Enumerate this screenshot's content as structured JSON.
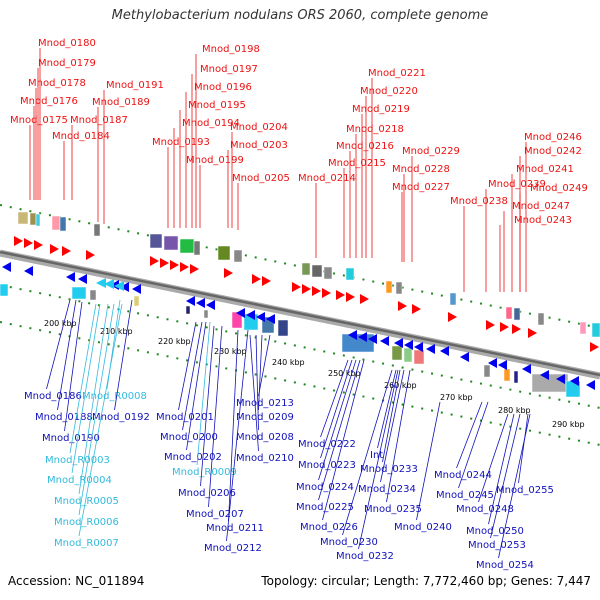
{
  "title": "Methylobacterium nodulans ORS 2060, complete genome",
  "footer": {
    "accession": "Accession: NC_011894",
    "topology": "Topology: circular; Length: 7,772,460 bp; Genes: 7,447"
  },
  "colors": {
    "forward_label": "#ee1111",
    "reverse_label": "#1111bb",
    "rna_label": "#33bbdd",
    "forward_gene": "#ff0000",
    "reverse_gene": "#0000ee",
    "rna_gene": "#22ccee",
    "backbone": "#888888",
    "tick": "#228822"
  },
  "ticks": [
    "200 kbp",
    "210 kbp",
    "220 kbp",
    "230 kbp",
    "240 kbp",
    "250 kbp",
    "260 kbp",
    "270 kbp",
    "280 kbp",
    "290 kbp"
  ],
  "forward_labels": [
    "Mnod_0180",
    "Mnod_0179",
    "Mnod_0178",
    "Mnod_0176",
    "Mnod_0175",
    "Mnod_0184",
    "Mnod_0187",
    "Mnod_0189",
    "Mnod_0191",
    "Mnod_0198",
    "Mnod_0197",
    "Mnod_0196",
    "Mnod_0195",
    "Mnod_0194",
    "Mnod_0193",
    "Mnod_0199",
    "Mnod_0204",
    "Mnod_0203",
    "Mnod_0205",
    "Mnod_0221",
    "Mnod_0220",
    "Mnod_0219",
    "Mnod_0218",
    "Mnod_0216",
    "Mnod_0215",
    "Mnod_0214",
    "Mnod_0229",
    "Mnod_0228",
    "Mnod_0227",
    "Mnod_0246",
    "Mnod_0242",
    "Mnod_0241",
    "Mnod_0239",
    "Mnod_0238",
    "Mnod_0249",
    "Mnod_0247",
    "Mnod_0243"
  ],
  "reverse_labels": [
    "Mnod_0186",
    "Mnod_R0008",
    "Mnod_0188",
    "Mnod_0192",
    "Mnod_0190",
    "Mnod_R0003",
    "Mnod_R0004",
    "Mnod_R0005",
    "Mnod_R0006",
    "Mnod_R0007",
    "Mnod_0201",
    "Mnod_0200",
    "Mnod_0202",
    "Mnod_R0009",
    "Mnod_0206",
    "Mnod_0207",
    "Mnod_0211",
    "Mnod_0212",
    "Mnod_0213",
    "Mnod_0209",
    "Mnod_0208",
    "Mnod_0210",
    "Mnod_0222",
    "Mnod_0223",
    "Mnod_0224",
    "Mnod_0225",
    "Mnod_0226",
    "Int",
    "Mnod_0233",
    "Mnod_0234",
    "Mnod_0235",
    "Mnod_0230",
    "Mnod_0232",
    "Mnod_0240",
    "Mnod_0244",
    "Mnod_0245",
    "Mnod_0255",
    "Mnod_0248",
    "Mnod_0250",
    "Mnod_0253",
    "Mnod_0254"
  ]
}
